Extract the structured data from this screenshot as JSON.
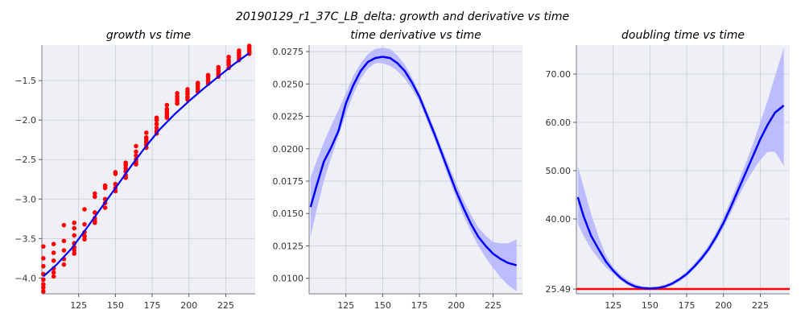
{
  "suptitle": "20190129_r1_37C_LB_delta: growth and derivative vs time",
  "colors": {
    "panel_bg": "#eef0f6",
    "grid": "#c9ccd6",
    "fit_line": "#0000ff",
    "band": "#b3b3ff",
    "points": "#ff0000",
    "reference_line": "#ff0000"
  },
  "chart_data": [
    {
      "type": "scatter",
      "title": "growth vs time",
      "xlabel": "",
      "ylabel": "",
      "xlim": [
        100,
        245
      ],
      "ylim": [
        -4.2,
        -1.05
      ],
      "xticks": [
        125,
        150,
        175,
        200,
        225
      ],
      "xtick_labels": [
        "125",
        "150",
        "175",
        "200",
        "225"
      ],
      "yticks": [
        -4.0,
        -3.5,
        -3.0,
        -2.5,
        -2.0,
        -1.5
      ],
      "ytick_labels": [
        "−4.0",
        "−3.5",
        "−3.0",
        "−2.5",
        "−2.0",
        "−1.5"
      ],
      "grid": true,
      "points": {
        "x": [
          101,
          101,
          101,
          101,
          101,
          101,
          101,
          101,
          108,
          108,
          108,
          108,
          108,
          108,
          115,
          115,
          115,
          115,
          115,
          122,
          122,
          122,
          122,
          122,
          122,
          122,
          129,
          129,
          129,
          129,
          129,
          136,
          136,
          136,
          136,
          136,
          136,
          143,
          143,
          143,
          143,
          143,
          150,
          150,
          150,
          150,
          150,
          157,
          157,
          157,
          157,
          157,
          157,
          164,
          164,
          164,
          164,
          164,
          164,
          171,
          171,
          171,
          171,
          171,
          171,
          178,
          178,
          178,
          178,
          178,
          178,
          185,
          185,
          185,
          185,
          185,
          185,
          192,
          192,
          192,
          192,
          192,
          199,
          199,
          199,
          199,
          199,
          206,
          206,
          206,
          206,
          206,
          213,
          213,
          213,
          213,
          213,
          220,
          220,
          220,
          220,
          220,
          227,
          227,
          227,
          227,
          227,
          234,
          234,
          234,
          234,
          234,
          241,
          241,
          241,
          241,
          241
        ],
        "y": [
          -3.6,
          -3.75,
          -3.85,
          -3.95,
          -4.02,
          -4.08,
          -4.12,
          -4.17,
          -3.57,
          -3.68,
          -3.78,
          -3.88,
          -3.93,
          -3.98,
          -3.33,
          -3.53,
          -3.65,
          -3.76,
          -3.83,
          -3.3,
          -3.37,
          -3.46,
          -3.56,
          -3.61,
          -3.65,
          -3.69,
          -3.13,
          -3.32,
          -3.42,
          -3.47,
          -3.51,
          -2.93,
          -2.97,
          -3.17,
          -3.24,
          -3.27,
          -3.3,
          -2.83,
          -2.86,
          -3.0,
          -3.05,
          -3.11,
          -2.66,
          -2.68,
          -2.81,
          -2.86,
          -2.9,
          -2.54,
          -2.57,
          -2.61,
          -2.65,
          -2.7,
          -2.73,
          -2.33,
          -2.4,
          -2.45,
          -2.5,
          -2.53,
          -2.56,
          -2.16,
          -2.22,
          -2.25,
          -2.28,
          -2.31,
          -2.35,
          -1.97,
          -2.0,
          -2.05,
          -2.1,
          -2.14,
          -2.17,
          -1.81,
          -1.86,
          -1.89,
          -1.92,
          -1.95,
          -1.97,
          -1.66,
          -1.7,
          -1.73,
          -1.76,
          -1.79,
          -1.61,
          -1.64,
          -1.67,
          -1.71,
          -1.74,
          -1.53,
          -1.55,
          -1.58,
          -1.61,
          -1.64,
          -1.43,
          -1.45,
          -1.48,
          -1.51,
          -1.54,
          -1.33,
          -1.36,
          -1.39,
          -1.42,
          -1.45,
          -1.2,
          -1.24,
          -1.27,
          -1.3,
          -1.34,
          -1.12,
          -1.15,
          -1.18,
          -1.21,
          -1.24,
          -1.06,
          -1.09,
          -1.12,
          -1.14,
          -1.16
        ]
      },
      "fit": {
        "x": [
          101,
          110,
          120,
          130,
          140,
          150,
          160,
          170,
          180,
          190,
          200,
          210,
          220,
          230,
          241
        ],
        "y": [
          -3.98,
          -3.83,
          -3.63,
          -3.38,
          -3.12,
          -2.86,
          -2.6,
          -2.35,
          -2.12,
          -1.93,
          -1.76,
          -1.6,
          -1.45,
          -1.3,
          -1.15
        ]
      }
    },
    {
      "type": "line",
      "title": "time derivative vs time",
      "xlabel": "",
      "ylabel": "",
      "xlim": [
        100,
        245
      ],
      "ylim": [
        0.0088,
        0.028
      ],
      "xticks": [
        125,
        150,
        175,
        200,
        225
      ],
      "xtick_labels": [
        "125",
        "150",
        "175",
        "200",
        "225"
      ],
      "yticks": [
        0.01,
        0.0125,
        0.015,
        0.0175,
        0.02,
        0.0225,
        0.025,
        0.0275
      ],
      "ytick_labels": [
        "0.0100",
        "0.0125",
        "0.0150",
        "0.0175",
        "0.0200",
        "0.0225",
        "0.0250",
        "0.0275"
      ],
      "grid": true,
      "series": [
        {
          "x": [
            101,
            105,
            110,
            115,
            120,
            125,
            130,
            135,
            140,
            145,
            150,
            155,
            160,
            165,
            170,
            175,
            180,
            185,
            190,
            195,
            200,
            205,
            210,
            215,
            220,
            225,
            230,
            235,
            241
          ],
          "y": [
            0.0155,
            0.0171,
            0.019,
            0.0201,
            0.0214,
            0.0235,
            0.0249,
            0.026,
            0.0267,
            0.027,
            0.0271,
            0.027,
            0.0266,
            0.026,
            0.0251,
            0.024,
            0.0226,
            0.0212,
            0.0197,
            0.0182,
            0.0167,
            0.0154,
            0.0142,
            0.0132,
            0.0125,
            0.0119,
            0.0115,
            0.0112,
            0.011
          ],
          "upper": [
            0.0178,
            0.019,
            0.0205,
            0.0218,
            0.023,
            0.0243,
            0.0256,
            0.0266,
            0.0273,
            0.0277,
            0.0278,
            0.0277,
            0.0272,
            0.0265,
            0.0255,
            0.0243,
            0.023,
            0.0216,
            0.0201,
            0.0187,
            0.0173,
            0.016,
            0.0149,
            0.0139,
            0.0133,
            0.0128,
            0.0127,
            0.0127,
            0.013
          ],
          "lower": [
            0.0132,
            0.0152,
            0.0175,
            0.0193,
            0.021,
            0.0227,
            0.0242,
            0.0254,
            0.0262,
            0.0266,
            0.0266,
            0.0264,
            0.026,
            0.0254,
            0.0246,
            0.0236,
            0.0222,
            0.0208,
            0.0193,
            0.0177,
            0.0162,
            0.0148,
            0.0136,
            0.0125,
            0.0116,
            0.0108,
            0.0101,
            0.0095,
            0.009
          ]
        }
      ]
    },
    {
      "type": "line",
      "title": "doubling time vs time",
      "xlabel": "",
      "ylabel": "",
      "xlim": [
        100,
        245
      ],
      "ylim": [
        24.5,
        76.0
      ],
      "xticks": [
        125,
        150,
        175,
        200,
        225
      ],
      "xtick_labels": [
        "125",
        "150",
        "175",
        "200",
        "225"
      ],
      "yticks": [
        25.49,
        40,
        50,
        60,
        70
      ],
      "ytick_labels": [
        "25.49",
        "40.00",
        "50.00",
        "60.00",
        "70.00"
      ],
      "grid": true,
      "series": [
        {
          "x": [
            101,
            105,
            110,
            115,
            120,
            125,
            130,
            135,
            140,
            145,
            150,
            155,
            160,
            165,
            170,
            175,
            180,
            185,
            190,
            195,
            200,
            205,
            210,
            215,
            220,
            225,
            230,
            235,
            241
          ],
          "y": [
            44.5,
            40.5,
            36.5,
            33.8,
            31.2,
            29.3,
            27.8,
            26.7,
            26.0,
            25.7,
            25.6,
            25.7,
            26.0,
            26.6,
            27.5,
            28.6,
            30.1,
            31.8,
            33.8,
            36.3,
            39.2,
            42.5,
            46.0,
            49.5,
            53.0,
            56.5,
            59.5,
            62.0,
            63.5
          ],
          "upper": [
            51.0,
            46.5,
            41.0,
            36.5,
            32.5,
            30.0,
            28.5,
            27.3,
            26.5,
            26.0,
            25.9,
            26.0,
            26.4,
            27.0,
            27.9,
            29.1,
            30.7,
            32.5,
            34.6,
            37.2,
            40.4,
            43.9,
            47.6,
            51.5,
            55.5,
            60.0,
            64.5,
            69.5,
            75.5
          ],
          "lower": [
            39.0,
            36.5,
            33.8,
            31.8,
            30.0,
            28.7,
            27.3,
            26.3,
            25.7,
            25.5,
            25.4,
            25.5,
            25.7,
            26.2,
            27.0,
            28.1,
            29.6,
            31.2,
            33.2,
            35.5,
            38.2,
            41.2,
            44.5,
            47.5,
            50.0,
            52.2,
            53.9,
            53.9,
            51.0
          ]
        }
      ],
      "reference_line": {
        "y": 25.49
      }
    }
  ]
}
